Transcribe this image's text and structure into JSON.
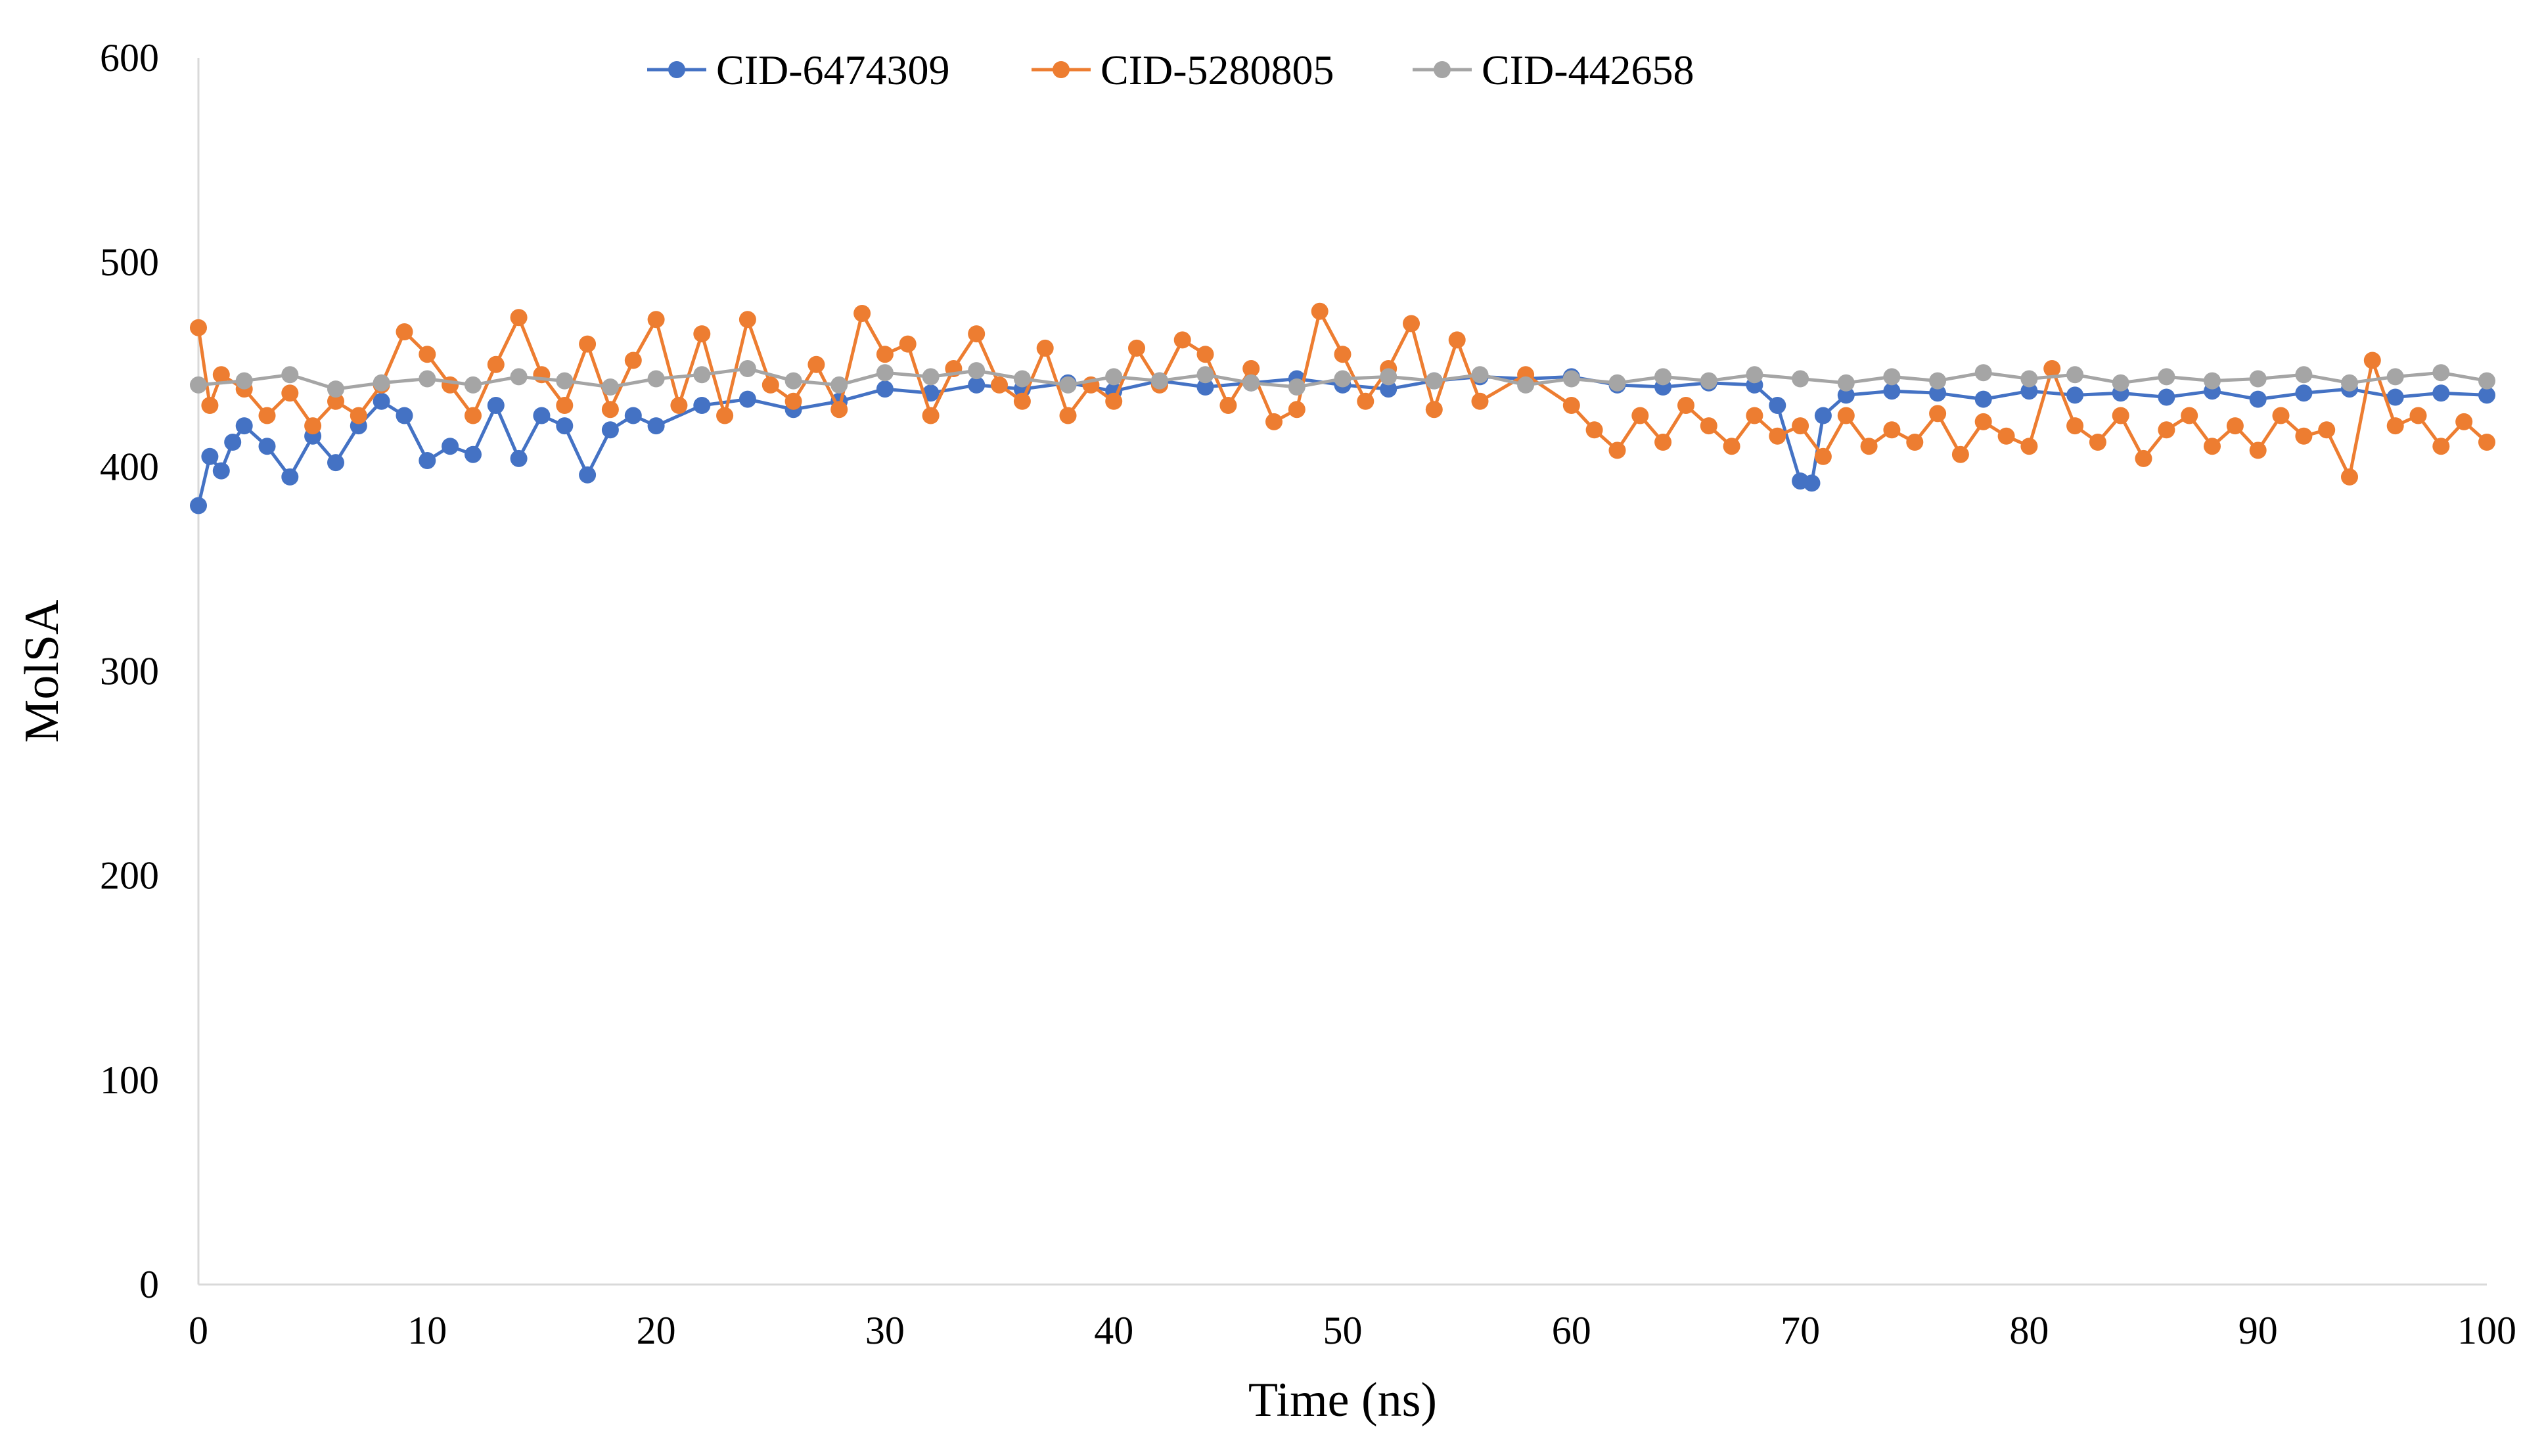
{
  "chart_data": {
    "type": "line",
    "title": "",
    "xlabel": "Time (ns)",
    "ylabel": "MolSA",
    "xlim": [
      0,
      100
    ],
    "ylim": [
      0,
      600
    ],
    "xticks": [
      0,
      10,
      20,
      30,
      40,
      50,
      60,
      70,
      80,
      90,
      100
    ],
    "yticks": [
      0,
      100,
      200,
      300,
      400,
      500,
      600
    ],
    "xtick_labels": [
      "0",
      "10",
      "20",
      "30",
      "40",
      "50",
      "60",
      "70",
      "80",
      "90",
      "100"
    ],
    "ytick_labels": [
      "0",
      "100",
      "200",
      "300",
      "400",
      "500",
      "600"
    ],
    "grid": false,
    "legend": "top",
    "series": [
      {
        "name": "CID-6474309",
        "color": "#4472C4",
        "x": [
          0,
          0.5,
          1,
          1.5,
          2,
          3,
          4,
          5,
          6,
          7,
          8,
          9,
          10,
          11,
          12,
          13,
          14,
          15,
          16,
          17,
          18,
          19,
          20,
          22,
          24,
          26,
          28,
          30,
          32,
          34,
          36,
          38,
          40,
          42,
          44,
          46,
          48,
          50,
          52,
          54,
          56,
          58,
          60,
          62,
          64,
          66,
          68,
          69,
          70,
          70.5,
          71,
          72,
          74,
          76,
          78,
          80,
          82,
          84,
          86,
          88,
          90,
          92,
          94,
          96,
          98,
          100
        ],
        "values": [
          381,
          405,
          398,
          412,
          420,
          410,
          395,
          415,
          402,
          420,
          432,
          425,
          403,
          410,
          406,
          430,
          404,
          425,
          420,
          396,
          418,
          425,
          420,
          430,
          433,
          428,
          432,
          438,
          436,
          440,
          438,
          441,
          437,
          442,
          439,
          441,
          443,
          440,
          438,
          442,
          444,
          443,
          444,
          440,
          439,
          441,
          440,
          430,
          393,
          392,
          425,
          435,
          437,
          436,
          433,
          437,
          435,
          436,
          434,
          437,
          433,
          436,
          438,
          434,
          436,
          435
        ]
      },
      {
        "name": "CID-5280805",
        "color": "#ED7D31",
        "x": [
          0,
          0.5,
          1,
          2,
          3,
          4,
          5,
          6,
          7,
          8,
          9,
          10,
          11,
          12,
          13,
          14,
          15,
          16,
          17,
          18,
          19,
          20,
          21,
          22,
          23,
          24,
          25,
          26,
          27,
          28,
          29,
          30,
          31,
          32,
          33,
          34,
          35,
          36,
          37,
          38,
          39,
          40,
          41,
          42,
          43,
          44,
          45,
          46,
          47,
          48,
          49,
          50,
          51,
          52,
          53,
          54,
          55,
          56,
          58,
          60,
          61,
          62,
          63,
          64,
          65,
          66,
          67,
          68,
          69,
          70,
          71,
          72,
          73,
          74,
          75,
          76,
          77,
          78,
          79,
          80,
          81,
          82,
          83,
          84,
          85,
          86,
          87,
          88,
          89,
          90,
          91,
          92,
          93,
          94,
          95,
          96,
          97,
          98,
          99,
          100
        ],
        "values": [
          468,
          430,
          445,
          438,
          425,
          436,
          420,
          432,
          425,
          440,
          466,
          455,
          440,
          425,
          450,
          473,
          445,
          430,
          460,
          428,
          452,
          472,
          430,
          465,
          425,
          472,
          440,
          432,
          450,
          428,
          475,
          455,
          460,
          425,
          448,
          465,
          440,
          432,
          458,
          425,
          440,
          432,
          458,
          440,
          462,
          455,
          430,
          448,
          422,
          428,
          476,
          455,
          432,
          448,
          470,
          428,
          462,
          432,
          445,
          430,
          418,
          408,
          425,
          412,
          430,
          420,
          410,
          425,
          415,
          420,
          405,
          425,
          410,
          418,
          412,
          426,
          406,
          422,
          415,
          410,
          448,
          420,
          412,
          425,
          404,
          418,
          425,
          410,
          420,
          408,
          425,
          415,
          418,
          395,
          452,
          420,
          425,
          410,
          422,
          412
        ]
      },
      {
        "name": "CID-442658",
        "color": "#A5A5A5",
        "x": [
          0,
          2,
          4,
          6,
          8,
          10,
          12,
          14,
          16,
          18,
          20,
          22,
          24,
          26,
          28,
          30,
          32,
          34,
          36,
          38,
          40,
          42,
          44,
          46,
          48,
          50,
          52,
          54,
          56,
          58,
          60,
          62,
          64,
          66,
          68,
          70,
          72,
          74,
          76,
          78,
          80,
          82,
          84,
          86,
          88,
          90,
          92,
          94,
          96,
          98,
          100
        ],
        "values": [
          440,
          442,
          445,
          438,
          441,
          443,
          440,
          444,
          442,
          439,
          443,
          445,
          448,
          442,
          440,
          446,
          444,
          447,
          443,
          440,
          444,
          442,
          445,
          441,
          439,
          443,
          444,
          442,
          445,
          440,
          443,
          441,
          444,
          442,
          445,
          443,
          441,
          444,
          442,
          446,
          443,
          445,
          441,
          444,
          442,
          443,
          445,
          441,
          444,
          446,
          442
        ]
      }
    ]
  }
}
